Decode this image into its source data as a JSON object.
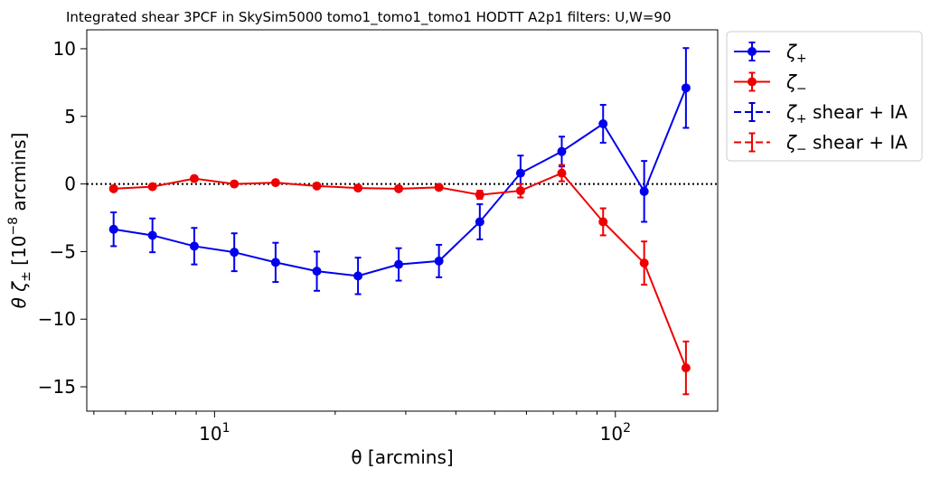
{
  "chart_data": {
    "type": "line",
    "title": "Integrated shear 3PCF in SkySim5000 tomo1_tomo1_tomo1 HODTT A2p1 filters: U,W=90",
    "xlabel": "θ [arcmins]",
    "ylabel_prefix": "θ ζ",
    "ylabel_sub": "±",
    "ylabel_bracket_open": " [10",
    "ylabel_exp": "−8",
    "ylabel_bracket_close": " arcmins]",
    "xscale": "log",
    "xlim": [
      4.8,
      180
    ],
    "ylim": [
      -16.8,
      11.4
    ],
    "x_major_ticks": [
      {
        "value": 10,
        "base": "10",
        "exp": "1"
      },
      {
        "value": 100,
        "base": "10",
        "exp": "2"
      }
    ],
    "y_ticks": [
      {
        "value": 10,
        "label": "10"
      },
      {
        "value": 5,
        "label": "5"
      },
      {
        "value": 0,
        "label": "0"
      },
      {
        "value": -5,
        "label": "−5"
      },
      {
        "value": -10,
        "label": "−10"
      },
      {
        "value": -15,
        "label": "−15"
      }
    ],
    "zero_line": true,
    "grid": false,
    "legend_position": "outside-top-right",
    "series": [
      {
        "name_main": "ζ",
        "name_sub": "+",
        "name_suffix": "",
        "color": "#0000ee",
        "style": "solid",
        "marker": true,
        "x": [
          5.6,
          7.0,
          8.9,
          11.2,
          14.2,
          18.0,
          22.8,
          28.8,
          36.3,
          45.9,
          58.0,
          73.5,
          93.2,
          118.0,
          150.0
        ],
        "y": [
          -3.35,
          -3.8,
          -4.6,
          -5.05,
          -5.8,
          -6.45,
          -6.8,
          -5.95,
          -5.7,
          -2.8,
          0.8,
          2.4,
          4.45,
          -0.55,
          7.1
        ],
        "err": [
          1.25,
          1.25,
          1.35,
          1.4,
          1.45,
          1.45,
          1.35,
          1.2,
          1.2,
          1.3,
          1.3,
          1.1,
          1.4,
          2.25,
          2.95
        ]
      },
      {
        "name_main": "ζ",
        "name_sub": "−",
        "name_suffix": "",
        "color": "#ee0000",
        "style": "solid",
        "marker": true,
        "x": [
          5.6,
          7.0,
          8.9,
          11.2,
          14.2,
          18.0,
          22.8,
          28.8,
          36.3,
          45.9,
          58.0,
          73.5,
          93.2,
          118.0,
          150.0
        ],
        "y": [
          -0.35,
          -0.2,
          0.4,
          0.0,
          0.1,
          -0.15,
          -0.3,
          -0.35,
          -0.25,
          -0.8,
          -0.5,
          0.8,
          -2.8,
          -5.85,
          -13.6
        ],
        "err": [
          0.15,
          0.15,
          0.15,
          0.15,
          0.15,
          0.15,
          0.15,
          0.15,
          0.15,
          0.3,
          0.5,
          0.6,
          1.0,
          1.6,
          1.95
        ]
      },
      {
        "name_main": "ζ",
        "name_sub": "+",
        "name_suffix": " shear + IA",
        "color": "#0000cc",
        "style": "dashed",
        "marker": false,
        "x": [],
        "y": [],
        "err": []
      },
      {
        "name_main": "ζ",
        "name_sub": "−",
        "name_suffix": " shear + IA",
        "color": "#ee0000",
        "style": "dashed",
        "marker": false,
        "x": [],
        "y": [],
        "err": []
      }
    ]
  }
}
